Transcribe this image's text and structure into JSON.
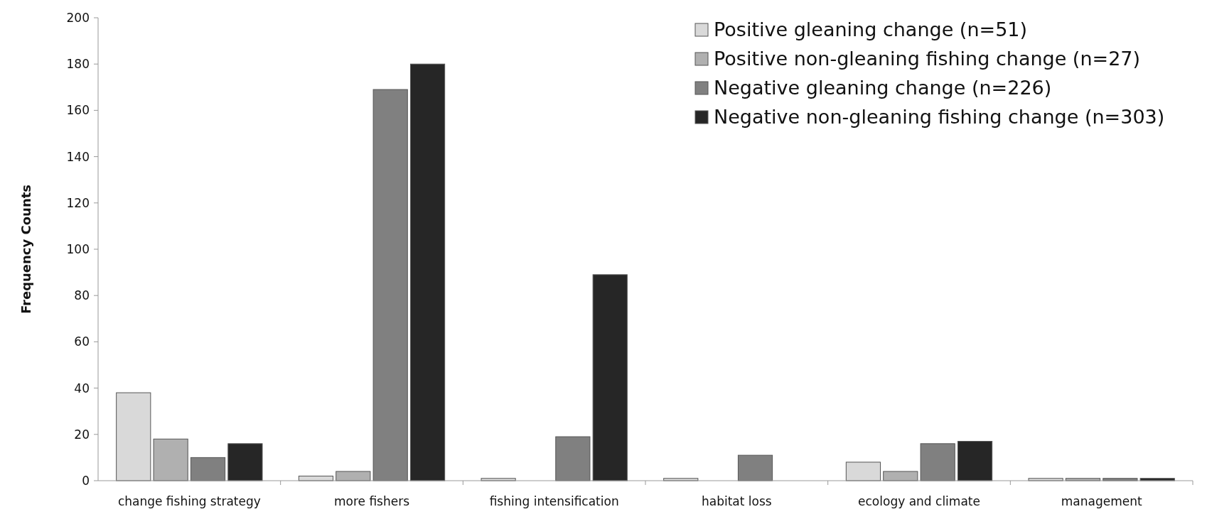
{
  "chart_data": {
    "type": "bar",
    "ylabel": "Frequency Counts",
    "categories": [
      "change fishing strategy",
      "more fishers",
      "fishing intensification",
      "habitat loss",
      "ecology and climate",
      "management"
    ],
    "series": [
      {
        "name": "Positive gleaning change (n=51)",
        "color": "#d9d9d9",
        "values": [
          38,
          2,
          1,
          1,
          8,
          1
        ]
      },
      {
        "name": "Positive non-gleaning fishing change (n=27)",
        "color": "#b0b0b0",
        "values": [
          18,
          4,
          0,
          0,
          4,
          1
        ]
      },
      {
        "name": "Negative gleaning change (n=226)",
        "color": "#808080",
        "values": [
          10,
          169,
          19,
          11,
          16,
          1
        ]
      },
      {
        "name": "Negative non-gleaning fishing change (n=303)",
        "color": "#262626",
        "values": [
          16,
          180,
          89,
          0,
          17,
          1
        ]
      }
    ],
    "ylim": [
      0,
      200
    ],
    "yticks": [
      0,
      20,
      40,
      60,
      80,
      100,
      120,
      140,
      160,
      180,
      200
    ],
    "legend": "top right"
  }
}
